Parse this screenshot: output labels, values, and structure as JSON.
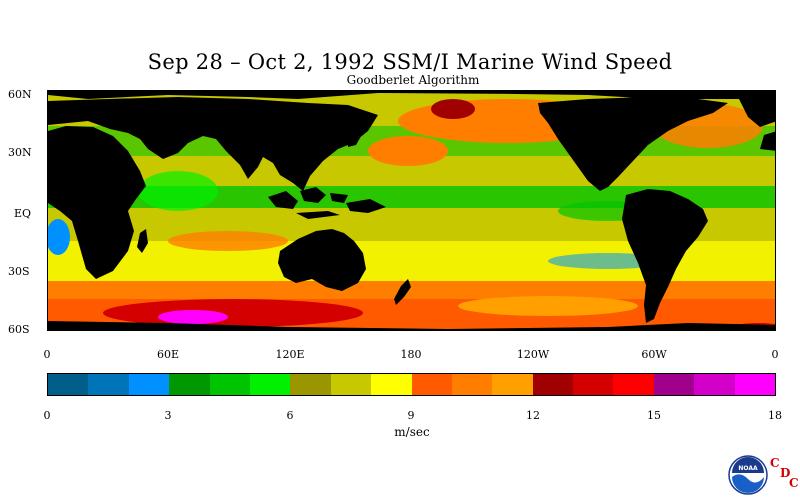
{
  "title": "Sep 28 – Oct 2, 1992 SSM/I Marine Wind Speed",
  "subtitle": "Goodberlet Algorithm",
  "lat_labels": [
    "60N",
    "30N",
    "EQ",
    "30S",
    "60S"
  ],
  "lon_labels": [
    "0",
    "60E",
    "120E",
    "180",
    "120W",
    "60W",
    "0"
  ],
  "colorbar": {
    "colors": [
      "#005f8a",
      "#0074b8",
      "#0090ff",
      "#009800",
      "#00c400",
      "#00f000",
      "#9a9600",
      "#c8c800",
      "#ffff00",
      "#ff5a00",
      "#ff7e00",
      "#ffa000",
      "#a00000",
      "#d40000",
      "#ff0000",
      "#a0008c",
      "#d200c8",
      "#ff00ff"
    ],
    "ticks": [
      "0",
      "3",
      "6",
      "9",
      "12",
      "15",
      "18"
    ],
    "range": [
      0,
      18
    ],
    "units": "m/sec"
  },
  "logo": {
    "name": "noaa-logo",
    "text": "NOAA",
    "letters": [
      "C",
      "D",
      "C"
    ]
  }
}
